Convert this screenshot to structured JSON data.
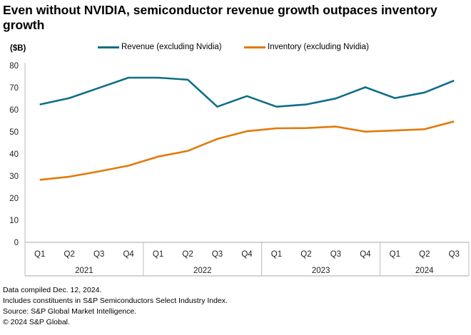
{
  "chart_data": {
    "type": "line",
    "title": "Even without NVIDIA, semiconductor revenue growth outpaces inventory growth",
    "ylabel": "($B)",
    "ylim": [
      0,
      80
    ],
    "yticks": [
      0,
      10,
      20,
      30,
      40,
      50,
      60,
      70,
      80
    ],
    "grid": false,
    "legend": "top",
    "categories": [
      "Q1",
      "Q2",
      "Q3",
      "Q4",
      "Q1",
      "Q2",
      "Q3",
      "Q4",
      "Q1",
      "Q2",
      "Q3",
      "Q4",
      "Q1",
      "Q2",
      "Q3"
    ],
    "years": [
      {
        "label": "2021",
        "count": 4
      },
      {
        "label": "2022",
        "count": 4
      },
      {
        "label": "2023",
        "count": 4
      },
      {
        "label": "2024",
        "count": 3
      }
    ],
    "series": [
      {
        "name": "Revenue (excluding Nvidia)",
        "color": "#0f6e87",
        "values": [
          62.4,
          65.3,
          69.9,
          74.5,
          74.5,
          73.6,
          61.4,
          66.2,
          61.4,
          62.4,
          65.1,
          70.2,
          65.3,
          67.8,
          73.2
        ]
      },
      {
        "name": "Inventory (excluding Nvidia)",
        "color": "#e07b0a",
        "values": [
          28.3,
          29.7,
          32.1,
          34.7,
          38.8,
          41.4,
          46.8,
          50.3,
          51.6,
          51.7,
          52.4,
          50.1,
          50.6,
          51.2,
          54.7
        ]
      }
    ]
  },
  "notes": [
    "Data compiled Dec. 12, 2024.",
    "Includes constituents in S&P Semiconductors Select Industry Index.",
    "Source: S&P Global Market Intelligence.",
    "© 2024 S&P Global."
  ]
}
